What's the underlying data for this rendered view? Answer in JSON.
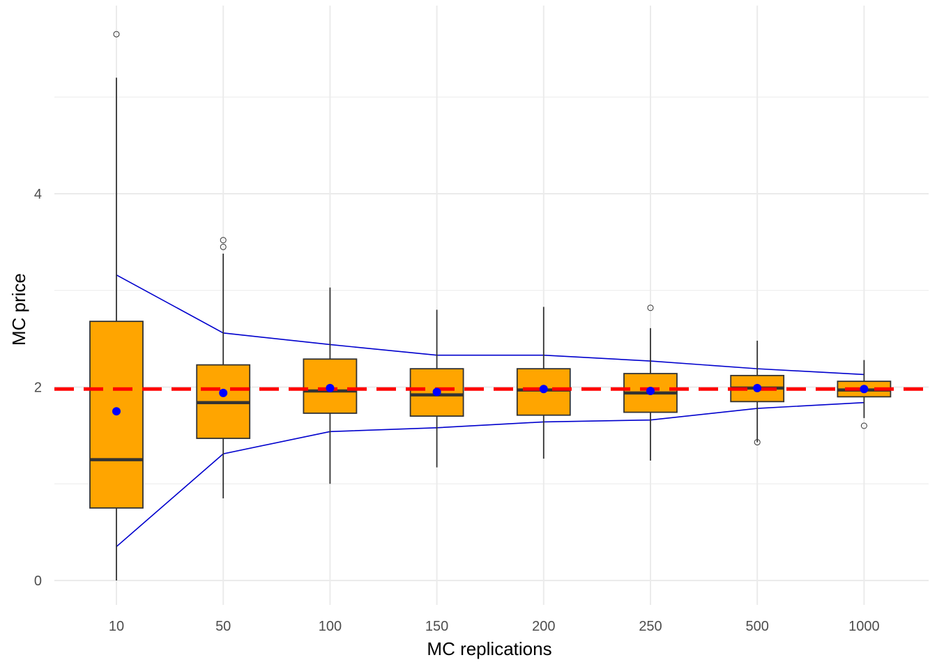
{
  "chart_data": {
    "type": "box",
    "xlabel": "MC replications",
    "ylabel": "MC price",
    "categories": [
      "10",
      "50",
      "100",
      "150",
      "200",
      "250",
      "500",
      "1000"
    ],
    "ylim": [
      -0.25,
      5.85
    ],
    "yticks": [
      0,
      2,
      4
    ],
    "ytick_labels": [
      "0",
      "2",
      "4"
    ],
    "grid": true,
    "colors": {
      "box_fill": "#FFA500",
      "box_border": "#333333",
      "mean_point": "#0000FF",
      "band_line": "#0000CD",
      "reference_line": "#FF0000",
      "grid": "#EBEBEB"
    },
    "boxes": [
      {
        "category": "10",
        "q1": 0.75,
        "median": 1.25,
        "q3": 2.68,
        "whisker_low": 0.0,
        "whisker_high": 5.2,
        "mean": 1.75,
        "outliers": [
          5.65
        ]
      },
      {
        "category": "50",
        "q1": 1.47,
        "median": 1.84,
        "q3": 2.23,
        "whisker_low": 0.85,
        "whisker_high": 3.38,
        "mean": 1.94,
        "outliers": [
          3.45,
          3.52
        ]
      },
      {
        "category": "100",
        "q1": 1.73,
        "median": 1.96,
        "q3": 2.29,
        "whisker_low": 1.0,
        "whisker_high": 3.03,
        "mean": 1.99,
        "outliers": []
      },
      {
        "category": "150",
        "q1": 1.7,
        "median": 1.92,
        "q3": 2.19,
        "whisker_low": 1.17,
        "whisker_high": 2.8,
        "mean": 1.95,
        "outliers": []
      },
      {
        "category": "200",
        "q1": 1.71,
        "median": 1.97,
        "q3": 2.19,
        "whisker_low": 1.26,
        "whisker_high": 2.83,
        "mean": 1.98,
        "outliers": []
      },
      {
        "category": "250",
        "q1": 1.74,
        "median": 1.94,
        "q3": 2.14,
        "whisker_low": 1.24,
        "whisker_high": 2.61,
        "mean": 1.96,
        "outliers": [
          2.82
        ]
      },
      {
        "category": "500",
        "q1": 1.85,
        "median": 1.99,
        "q3": 2.12,
        "whisker_low": 1.43,
        "whisker_high": 2.48,
        "mean": 1.99,
        "outliers": [
          1.43
        ]
      },
      {
        "category": "1000",
        "q1": 1.9,
        "median": 1.97,
        "q3": 2.06,
        "whisker_low": 1.68,
        "whisker_high": 2.28,
        "mean": 1.98,
        "outliers": [
          1.6
        ]
      }
    ],
    "band_upper": [
      3.16,
      2.56,
      2.44,
      2.33,
      2.33,
      2.27,
      2.19,
      2.13
    ],
    "band_lower": [
      0.35,
      1.31,
      1.54,
      1.58,
      1.64,
      1.66,
      1.78,
      1.84
    ],
    "reference_value": 1.98
  }
}
